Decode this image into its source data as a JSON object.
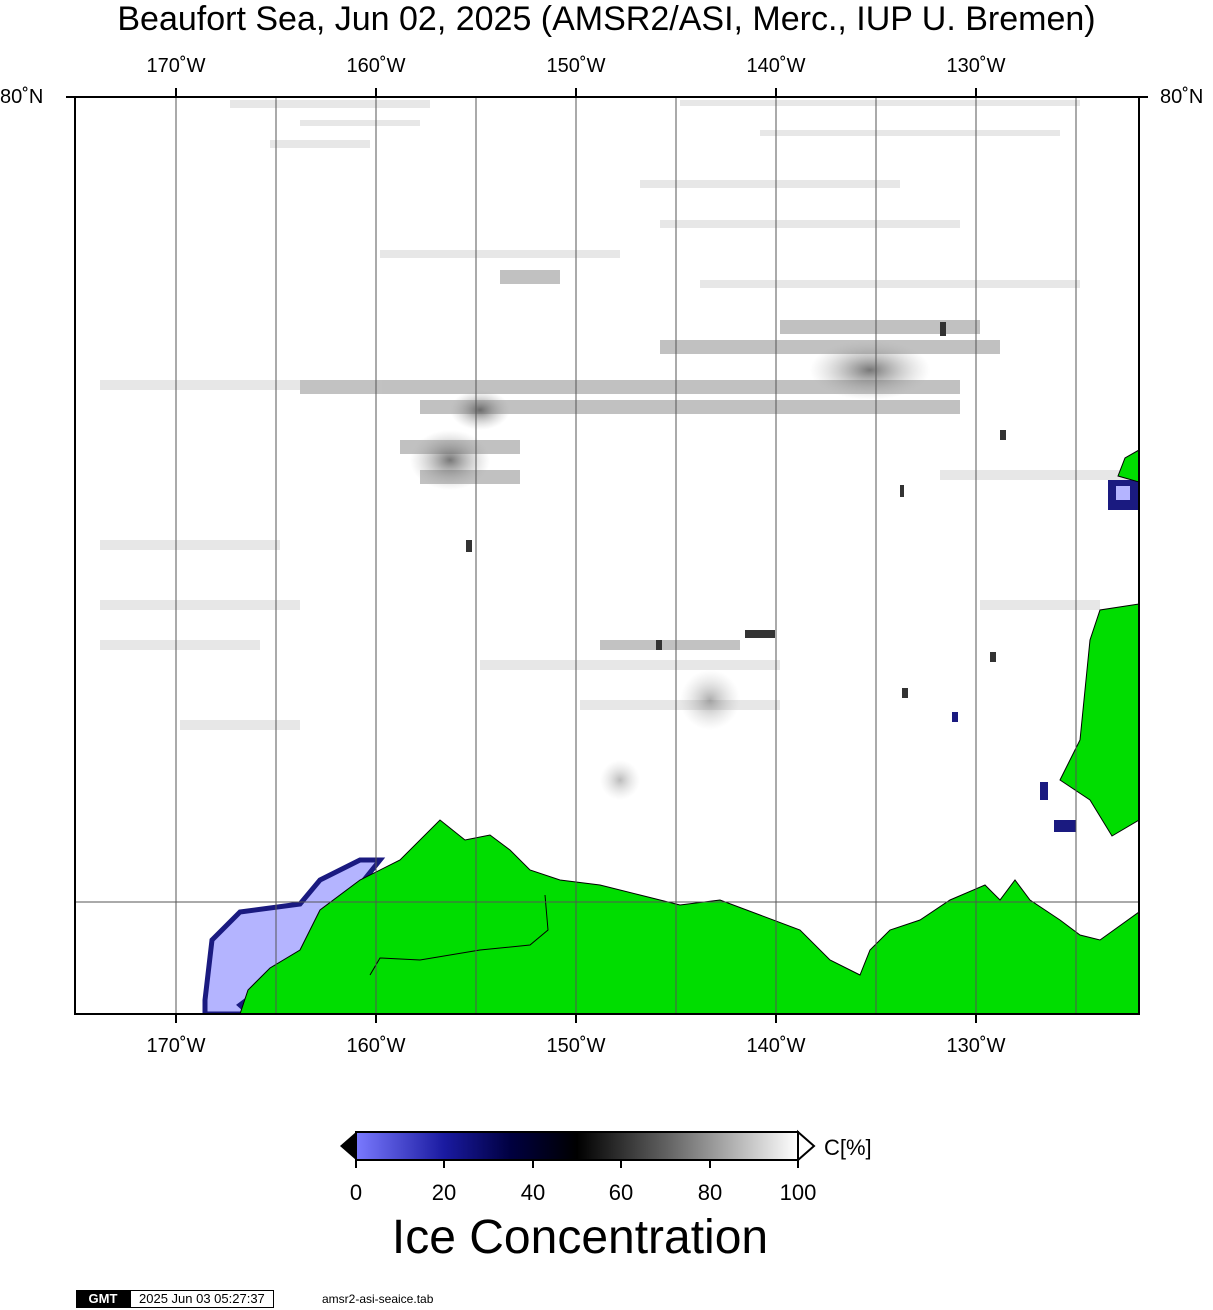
{
  "title": "Beaufort Sea, Jun 02, 2025 (AMSR2/ASI, Merc., IUP U. Bremen)",
  "longitude_labels": [
    "170˚W",
    "160˚W",
    "150˚W",
    "140˚W",
    "130˚W"
  ],
  "latitude_labels": {
    "left": "80˚N",
    "right": "80˚N"
  },
  "colors": {
    "land": "#00dd00",
    "low_ice": "#b4b4ff",
    "frame": "#000000",
    "grid": "#555555"
  },
  "colorbar": {
    "ticks": [
      "0",
      "20",
      "40",
      "60",
      "80",
      "100"
    ],
    "unit": "C[%]",
    "title": "Ice Concentration"
  },
  "footer": {
    "logo": "GMT",
    "timestamp": "2025 Jun 03 05:27:37",
    "file": "amsr2-asi-seaice.tab"
  }
}
